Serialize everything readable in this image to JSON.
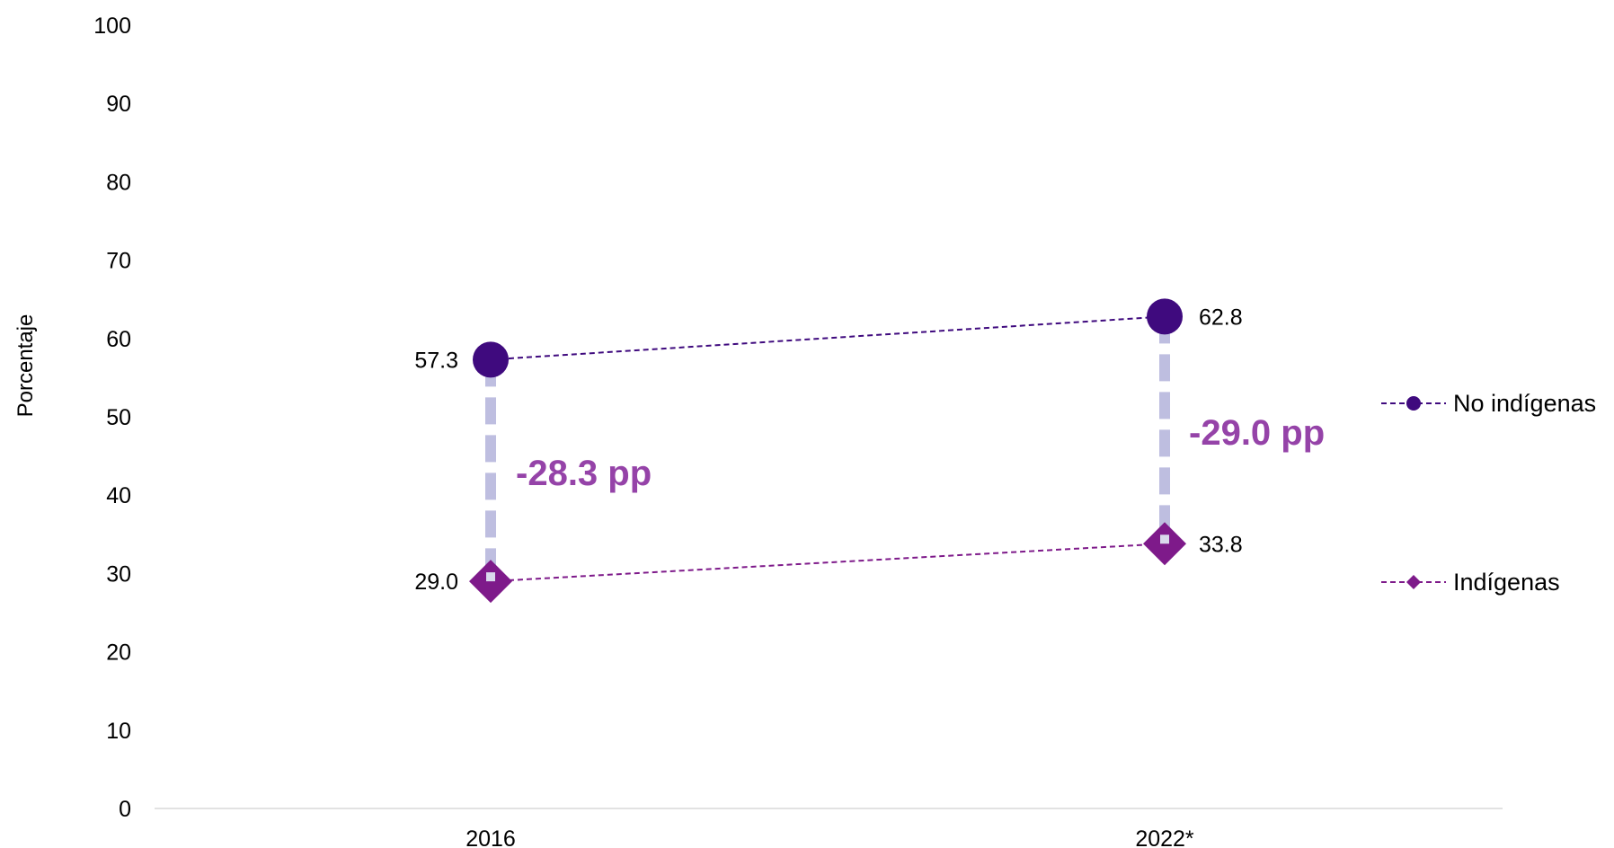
{
  "chart_data": {
    "type": "line",
    "ylabel": "Porcentaje",
    "ylim": [
      0,
      100
    ],
    "yticks": [
      0,
      10,
      20,
      30,
      40,
      50,
      60,
      70,
      80,
      90,
      100
    ],
    "categories": [
      "2016",
      "2022*"
    ],
    "series": [
      {
        "name": "No indígenas",
        "values": [
          57.3,
          62.8
        ],
        "labels": [
          "57.3",
          "62.8"
        ],
        "marker": "circle",
        "color": "#3f0a7e"
      },
      {
        "name": "Indígenas",
        "values": [
          29.0,
          33.8
        ],
        "labels": [
          "29.0",
          "33.8"
        ],
        "marker": "diamond",
        "color": "#7e1a8a"
      }
    ],
    "gaps": [
      "-28.3 pp",
      "-29.0 pp"
    ],
    "gap_color": "#9543a8",
    "connector_color": "#bebee0",
    "legend_position": "right",
    "grid": false
  }
}
